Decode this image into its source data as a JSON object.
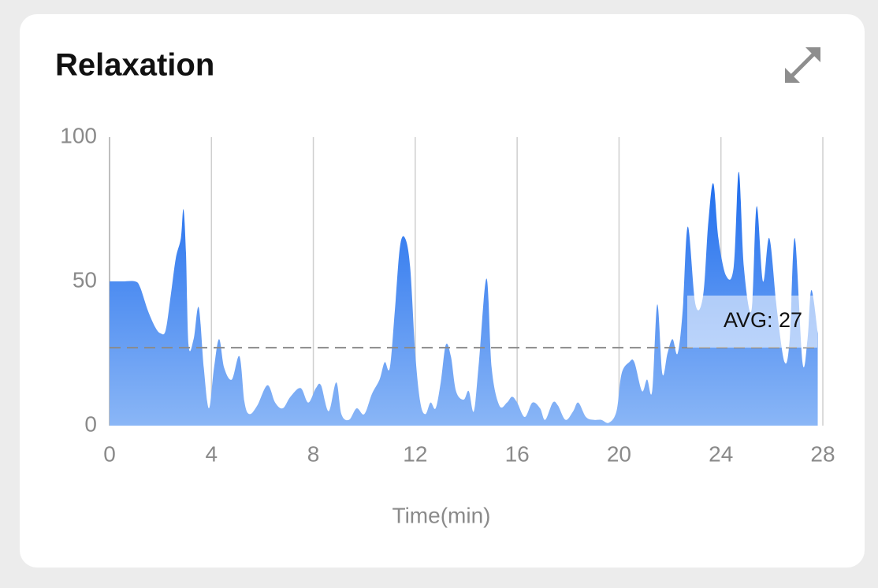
{
  "chart_data": {
    "type": "area",
    "title": "Relaxation",
    "xlabel": "Time(min)",
    "xlim": [
      0,
      28
    ],
    "xticks": [
      0,
      4,
      8,
      12,
      16,
      20,
      24,
      28
    ],
    "ylim": [
      0,
      100
    ],
    "yticks": [
      0,
      50,
      100
    ],
    "grid": true,
    "color": "#2a78f0",
    "avg": {
      "value": 27,
      "label": "AVG: 27"
    },
    "x": [
      0,
      0.5,
      1.0,
      1.2,
      1.5,
      1.8,
      2.0,
      2.2,
      2.4,
      2.6,
      2.8,
      2.9,
      3.0,
      3.1,
      3.3,
      3.5,
      3.7,
      3.9,
      4.1,
      4.3,
      4.5,
      4.8,
      5.1,
      5.3,
      5.5,
      5.8,
      6.2,
      6.5,
      6.8,
      7.1,
      7.5,
      7.8,
      8.1,
      8.3,
      8.6,
      8.9,
      9.1,
      9.4,
      9.7,
      10.0,
      10.3,
      10.6,
      10.8,
      11.0,
      11.2,
      11.4,
      11.6,
      11.8,
      12.0,
      12.2,
      12.4,
      12.6,
      12.8,
      13.0,
      13.2,
      13.4,
      13.6,
      13.9,
      14.1,
      14.3,
      14.5,
      14.8,
      15.0,
      15.3,
      15.6,
      15.8,
      16.0,
      16.3,
      16.6,
      16.9,
      17.1,
      17.4,
      17.6,
      17.9,
      18.2,
      18.4,
      18.7,
      19.0,
      19.3,
      19.6,
      19.9,
      20.1,
      20.4,
      20.6,
      20.9,
      21.1,
      21.3,
      21.5,
      21.7,
      21.9,
      22.1,
      22.3,
      22.5,
      22.7,
      23.0,
      23.3,
      23.5,
      23.7,
      23.9,
      24.2,
      24.5,
      24.7,
      24.9,
      25.2,
      25.4,
      25.65,
      25.9,
      26.2,
      26.5,
      26.7,
      26.9,
      27.2,
      27.4,
      27.55,
      27.8
    ],
    "values": [
      50,
      50,
      50,
      48,
      40,
      34,
      32,
      33,
      45,
      58,
      65,
      75,
      60,
      28,
      30,
      41,
      20,
      6,
      20,
      30,
      20,
      16,
      24,
      8,
      4,
      7,
      14,
      8,
      6,
      10,
      13,
      8,
      13,
      14,
      5,
      15,
      4,
      2,
      6,
      4,
      11,
      16,
      22,
      20,
      40,
      62,
      65,
      55,
      25,
      8,
      4,
      8,
      6,
      15,
      28,
      24,
      12,
      9,
      12,
      5,
      22,
      51,
      20,
      7,
      8,
      10,
      8,
      3,
      8,
      6,
      2,
      8,
      7,
      2,
      5,
      8,
      3,
      2,
      2,
      1,
      5,
      18,
      22,
      22,
      12,
      16,
      12,
      42,
      18,
      25,
      30,
      25,
      40,
      69,
      42,
      45,
      70,
      84,
      65,
      52,
      55,
      88,
      55,
      40,
      76,
      50,
      65,
      40,
      22,
      30,
      65,
      22,
      30,
      47,
      32
    ]
  }
}
